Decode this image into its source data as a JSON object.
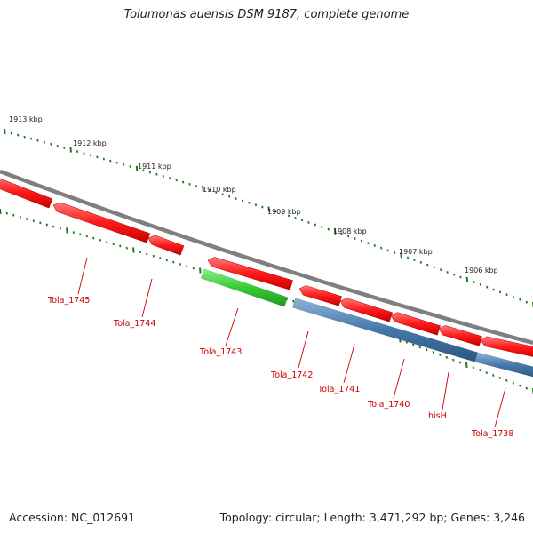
{
  "title": "Tolumonas auensis DSM 9187, complete genome",
  "footer": {
    "accession": "Accession: NC_012691",
    "summary": "Topology: circular; Length: 3,471,292 bp; Genes: 3,246"
  },
  "ruler": [
    {
      "label": "1913 kbp"
    },
    {
      "label": "1912 kbp"
    },
    {
      "label": "1911 kbp"
    },
    {
      "label": "1910 kbp"
    },
    {
      "label": "1909 kbp"
    },
    {
      "label": "1908 kbp"
    },
    {
      "label": "1907 kbp"
    },
    {
      "label": "1906 kbp"
    }
  ],
  "genes": [
    {
      "label": "Tola_1745",
      "strand": "reverse",
      "color": "#ff2020"
    },
    {
      "label": "Tola_1744",
      "strand": "reverse",
      "color": "#ff2020"
    },
    {
      "label": "Tola_1743",
      "strand": "reverse",
      "color": "#ff2020"
    },
    {
      "label": "Tola_1742",
      "strand": "reverse",
      "color": "#ff2020"
    },
    {
      "label": "Tola_1741",
      "strand": "reverse",
      "color": "#ff2020"
    },
    {
      "label": "Tola_1740",
      "strand": "reverse",
      "color": "#ff2020"
    },
    {
      "label": "hisH",
      "strand": "reverse",
      "color": "#ff2020"
    },
    {
      "label": "Tola_1738",
      "strand": "reverse",
      "color": "#ff2020"
    }
  ],
  "features": [
    {
      "kind": "green",
      "color": "#33cc33"
    },
    {
      "kind": "blue",
      "color": "#4477aa"
    },
    {
      "kind": "blue",
      "color": "#4477aa"
    }
  ],
  "colors": {
    "backbone": "#888888",
    "gene": "#ff2020",
    "label": "#cc0000",
    "tick": "#227722"
  }
}
